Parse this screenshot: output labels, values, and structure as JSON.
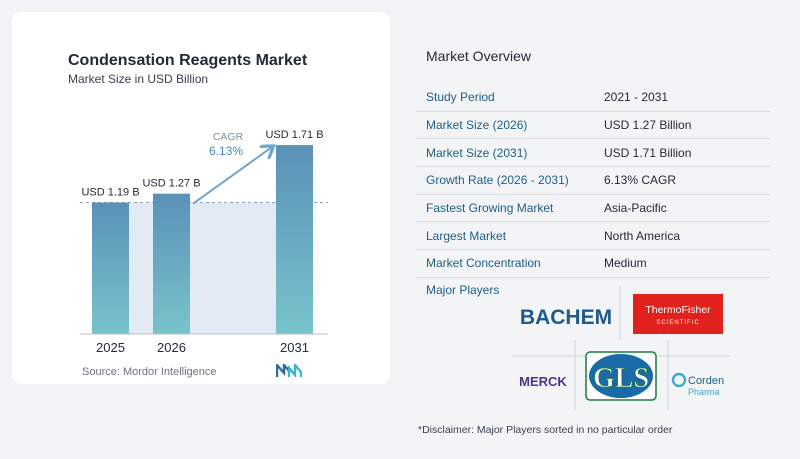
{
  "chart_data": {
    "type": "bar",
    "title": "Condensation Reagents Market",
    "subtitle": "Market Size in USD Billion",
    "categories": [
      "2025",
      "2026",
      "2031"
    ],
    "values": [
      1.19,
      1.27,
      1.71
    ],
    "value_labels": [
      "USD 1.19 B",
      "USD 1.27 B",
      "USD 1.71 B"
    ],
    "cagr_label": "CAGR",
    "cagr_value": "6.13%",
    "ylim": [
      0,
      1.85
    ],
    "grid": false,
    "colors": {
      "bar_top": "#5b91b8",
      "bar_bottom": "#77c4cc",
      "shade": "#e2ebf3",
      "arrow": "#6fa5cf",
      "cagr_text": "#4a88c4"
    }
  },
  "source": "Source:  Mordor Intelligence",
  "overview": {
    "title": "Market Overview",
    "rows": [
      {
        "label": "Study Period",
        "value": "2021 - 2031"
      },
      {
        "label": "Market Size (2026)",
        "value": "USD 1.27 Billion"
      },
      {
        "label": "Market Size (2031)",
        "value": "USD 1.71 Billion"
      },
      {
        "label": "Growth Rate (2026 - 2031)",
        "value": "6.13% CAGR"
      },
      {
        "label": "Fastest Growing Market",
        "value": "Asia-Pacific"
      },
      {
        "label": "Largest Market",
        "value": "North America"
      },
      {
        "label": "Market Concentration",
        "value": "Medium"
      }
    ]
  },
  "players": {
    "title": "Major Players",
    "logos": {
      "bachem": "BACHEM",
      "thermo_line1": "ThermoFisher",
      "thermo_line2": "SCIENTIFIC",
      "merck": "MERCK",
      "gls": "GLS",
      "corden_line1": "Corden",
      "corden_line2": "Pharma"
    }
  },
  "disclaimer": "*Disclaimer: Major Players sorted in no particular order"
}
